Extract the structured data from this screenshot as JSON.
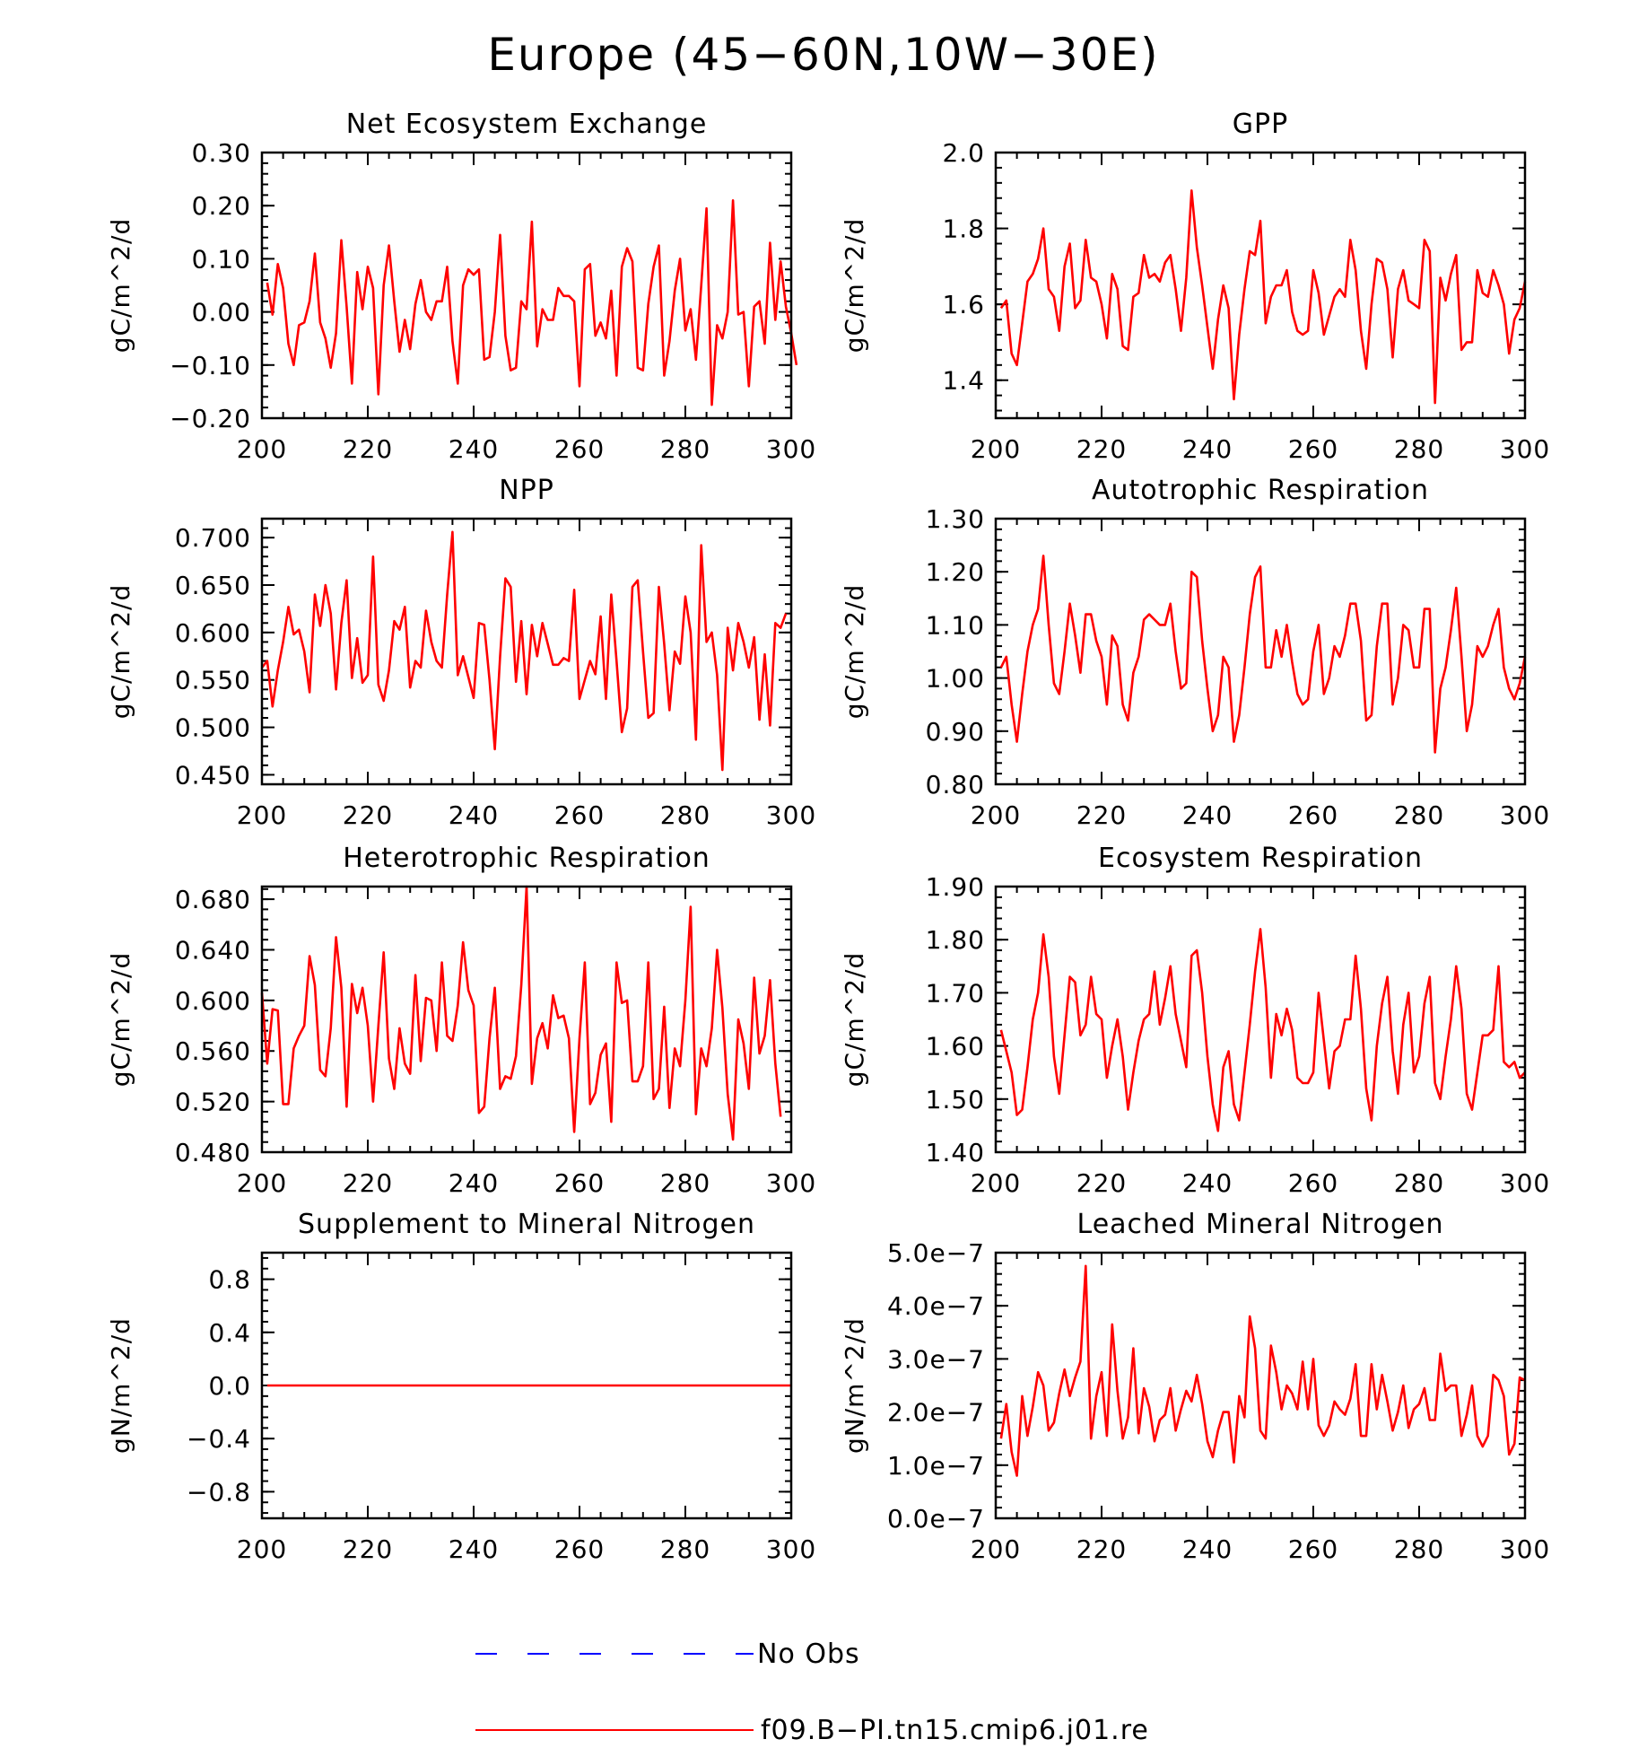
{
  "title": "Europe (45−60N,10W−30E)",
  "colors": {
    "series": "#ff0000",
    "obs": "#0000ff"
  },
  "legend": [
    {
      "label": "No Obs",
      "color": "#0000ff",
      "style": "dashed"
    },
    {
      "label": "f09.B−PI.tn15.cmip6.j01.re",
      "color": "#ff0000",
      "style": "solid"
    }
  ],
  "chart_data": [
    {
      "type": "line",
      "title": "Net Ecosystem Exchange",
      "ylabel": "gC/m^2/d",
      "xlim": [
        200,
        300
      ],
      "ylim": [
        -0.2,
        0.3
      ],
      "xticks": [
        200,
        220,
        240,
        260,
        280,
        300
      ],
      "xtick_labels": [
        "200",
        "220",
        "240",
        "260",
        "280",
        "300"
      ],
      "yticks": [
        -0.2,
        -0.1,
        0.0,
        0.1,
        0.2,
        0.3
      ],
      "ytick_labels": [
        "−0.20",
        "−0.10",
        "0.00",
        "0.10",
        "0.20",
        "0.30"
      ],
      "x_start": 201,
      "series": [
        {
          "name": "f09.B−PI.tn15.cmip6.j01.re",
          "values": [
            0.055,
            -0.005,
            0.09,
            0.045,
            -0.06,
            -0.1,
            -0.025,
            -0.02,
            0.02,
            0.11,
            -0.02,
            -0.05,
            -0.105,
            -0.04,
            0.135,
            0.01,
            -0.135,
            0.075,
            0.005,
            0.085,
            0.045,
            -0.155,
            0.05,
            0.125,
            0.02,
            -0.075,
            -0.015,
            -0.07,
            0.015,
            0.06,
            0.0,
            -0.015,
            0.02,
            0.02,
            0.085,
            -0.055,
            -0.135,
            0.05,
            0.08,
            0.07,
            0.08,
            -0.09,
            -0.085,
            0.0,
            0.145,
            -0.045,
            -0.11,
            -0.105,
            0.02,
            0.005,
            0.17,
            -0.065,
            0.005,
            -0.015,
            -0.015,
            0.045,
            0.03,
            0.03,
            0.02,
            -0.14,
            0.08,
            0.09,
            -0.045,
            -0.02,
            -0.05,
            0.04,
            -0.12,
            0.085,
            0.12,
            0.095,
            -0.105,
            -0.11,
            0.015,
            0.085,
            0.125,
            -0.12,
            -0.055,
            0.04,
            0.1,
            -0.035,
            0.005,
            -0.09,
            0.05,
            0.195,
            -0.175,
            -0.025,
            -0.05,
            0.0,
            0.21,
            -0.005,
            0.0,
            -0.14,
            0.01,
            0.02,
            -0.06,
            0.13,
            -0.015,
            0.095,
            0.01,
            -0.04,
            -0.1
          ]
        }
      ]
    },
    {
      "type": "line",
      "title": "GPP",
      "ylabel": "gC/m^2/d",
      "xlim": [
        200,
        300
      ],
      "ylim": [
        1.3,
        2.0
      ],
      "xticks": [
        200,
        220,
        240,
        260,
        280,
        300
      ],
      "xtick_labels": [
        "200",
        "220",
        "240",
        "260",
        "280",
        "300"
      ],
      "yticks": [
        1.4,
        1.6,
        1.8,
        2.0
      ],
      "ytick_labels": [
        "1.4",
        "1.6",
        "1.8",
        "2.0"
      ],
      "x_start": 201,
      "series": [
        {
          "name": "f09.B−PI.tn15.cmip6.j01.re",
          "values": [
            1.59,
            1.61,
            1.47,
            1.44,
            1.55,
            1.66,
            1.68,
            1.72,
            1.8,
            1.64,
            1.62,
            1.53,
            1.7,
            1.76,
            1.59,
            1.61,
            1.77,
            1.67,
            1.66,
            1.6,
            1.51,
            1.68,
            1.64,
            1.49,
            1.48,
            1.62,
            1.63,
            1.73,
            1.67,
            1.68,
            1.66,
            1.71,
            1.73,
            1.64,
            1.53,
            1.67,
            1.9,
            1.75,
            1.65,
            1.54,
            1.43,
            1.56,
            1.65,
            1.59,
            1.35,
            1.52,
            1.64,
            1.74,
            1.73,
            1.82,
            1.55,
            1.62,
            1.65,
            1.65,
            1.69,
            1.58,
            1.53,
            1.52,
            1.53,
            1.69,
            1.63,
            1.52,
            1.57,
            1.62,
            1.64,
            1.62,
            1.77,
            1.69,
            1.53,
            1.43,
            1.6,
            1.72,
            1.71,
            1.64,
            1.46,
            1.64,
            1.69,
            1.61,
            1.6,
            1.59,
            1.77,
            1.74,
            1.34,
            1.67,
            1.61,
            1.68,
            1.73,
            1.48,
            1.5,
            1.5,
            1.69,
            1.63,
            1.62,
            1.69,
            1.65,
            1.6,
            1.47,
            1.56,
            1.59,
            1.66
          ]
        }
      ]
    },
    {
      "type": "line",
      "title": "NPP",
      "ylabel": "gC/m^2/d",
      "xlim": [
        200,
        300
      ],
      "ylim": [
        0.44,
        0.72
      ],
      "xticks": [
        200,
        220,
        240,
        260,
        280,
        300
      ],
      "xtick_labels": [
        "200",
        "220",
        "240",
        "260",
        "280",
        "300"
      ],
      "yticks": [
        0.45,
        0.5,
        0.55,
        0.6,
        0.65,
        0.7
      ],
      "ytick_labels": [
        "0.450",
        "0.500",
        "0.550",
        "0.600",
        "0.650",
        "0.700"
      ],
      "x_start": 200,
      "series": [
        {
          "name": "f09.B−PI.tn15.cmip6.j01.re",
          "values": [
            0.563,
            0.57,
            0.522,
            0.56,
            0.59,
            0.627,
            0.598,
            0.603,
            0.58,
            0.537,
            0.64,
            0.607,
            0.65,
            0.62,
            0.54,
            0.61,
            0.655,
            0.552,
            0.594,
            0.547,
            0.555,
            0.68,
            0.545,
            0.528,
            0.56,
            0.612,
            0.603,
            0.627,
            0.542,
            0.57,
            0.563,
            0.623,
            0.59,
            0.57,
            0.563,
            0.64,
            0.706,
            0.555,
            0.575,
            0.553,
            0.531,
            0.61,
            0.608,
            0.55,
            0.477,
            0.575,
            0.657,
            0.648,
            0.548,
            0.612,
            0.535,
            0.608,
            0.575,
            0.61,
            0.588,
            0.566,
            0.566,
            0.573,
            0.57,
            0.645,
            0.53,
            0.55,
            0.57,
            0.556,
            0.617,
            0.53,
            0.64,
            0.57,
            0.495,
            0.52,
            0.648,
            0.655,
            0.58,
            0.51,
            0.515,
            0.648,
            0.588,
            0.518,
            0.58,
            0.567,
            0.638,
            0.6,
            0.487,
            0.692,
            0.59,
            0.6,
            0.555,
            0.455,
            0.605,
            0.56,
            0.61,
            0.59,
            0.563,
            0.595,
            0.508,
            0.577,
            0.502,
            0.61,
            0.605,
            0.62
          ]
        }
      ]
    },
    {
      "type": "line",
      "title": "Autotrophic Respiration",
      "ylabel": "gC/m^2/d",
      "xlim": [
        200,
        300
      ],
      "ylim": [
        0.8,
        1.3
      ],
      "xticks": [
        200,
        220,
        240,
        260,
        280,
        300
      ],
      "xtick_labels": [
        "200",
        "220",
        "240",
        "260",
        "280",
        "300"
      ],
      "yticks": [
        0.8,
        0.9,
        1.0,
        1.1,
        1.2,
        1.3
      ],
      "ytick_labels": [
        "0.80",
        "0.90",
        "1.00",
        "1.10",
        "1.20",
        "1.30"
      ],
      "x_start": 201,
      "series": [
        {
          "name": "f09.B−PI.tn15.cmip6.j01.re",
          "values": [
            1.02,
            1.04,
            0.95,
            0.88,
            0.97,
            1.05,
            1.1,
            1.13,
            1.23,
            1.1,
            0.99,
            0.97,
            1.05,
            1.14,
            1.08,
            1.01,
            1.12,
            1.12,
            1.07,
            1.04,
            0.95,
            1.08,
            1.06,
            0.95,
            0.92,
            1.01,
            1.04,
            1.11,
            1.12,
            1.11,
            1.1,
            1.1,
            1.14,
            1.05,
            0.98,
            0.99,
            1.2,
            1.19,
            1.07,
            0.98,
            0.9,
            0.93,
            1.04,
            1.02,
            0.88,
            0.93,
            1.02,
            1.12,
            1.19,
            1.21,
            1.02,
            1.02,
            1.09,
            1.04,
            1.1,
            1.03,
            0.97,
            0.95,
            0.96,
            1.05,
            1.1,
            0.97,
            1.0,
            1.06,
            1.04,
            1.08,
            1.14,
            1.14,
            1.07,
            0.92,
            0.93,
            1.06,
            1.14,
            1.14,
            0.95,
            1.0,
            1.1,
            1.09,
            1.02,
            1.02,
            1.13,
            1.13,
            0.86,
            0.98,
            1.02,
            1.09,
            1.17,
            1.04,
            0.9,
            0.95,
            1.06,
            1.04,
            1.06,
            1.1,
            1.13,
            1.02,
            0.98,
            0.96,
            0.99,
            1.04
          ]
        }
      ]
    },
    {
      "type": "line",
      "title": "Heterotrophic Respiration",
      "ylabel": "gC/m^2/d",
      "xlim": [
        200,
        300
      ],
      "ylim": [
        0.48,
        0.69
      ],
      "xticks": [
        200,
        220,
        240,
        260,
        280,
        300
      ],
      "xtick_labels": [
        "200",
        "220",
        "240",
        "260",
        "280",
        "300"
      ],
      "yticks": [
        0.48,
        0.52,
        0.56,
        0.6,
        0.64,
        0.68
      ],
      "ytick_labels": [
        "0.480",
        "0.520",
        "0.560",
        "0.600",
        "0.640",
        "0.680"
      ],
      "x_start": 200,
      "series": [
        {
          "name": "f09.B−PI.tn15.cmip6.j01.re",
          "values": [
            0.606,
            0.55,
            0.593,
            0.592,
            0.518,
            0.518,
            0.562,
            0.572,
            0.58,
            0.635,
            0.612,
            0.545,
            0.54,
            0.578,
            0.65,
            0.61,
            0.516,
            0.613,
            0.59,
            0.61,
            0.58,
            0.52,
            0.58,
            0.638,
            0.554,
            0.53,
            0.578,
            0.55,
            0.542,
            0.62,
            0.552,
            0.602,
            0.6,
            0.56,
            0.63,
            0.572,
            0.568,
            0.596,
            0.646,
            0.608,
            0.596,
            0.511,
            0.516,
            0.57,
            0.61,
            0.53,
            0.54,
            0.538,
            0.556,
            0.612,
            0.69,
            0.534,
            0.57,
            0.582,
            0.562,
            0.604,
            0.586,
            0.588,
            0.57,
            0.496,
            0.57,
            0.63,
            0.518,
            0.527,
            0.557,
            0.566,
            0.504,
            0.63,
            0.598,
            0.6,
            0.536,
            0.536,
            0.548,
            0.63,
            0.522,
            0.53,
            0.595,
            0.515,
            0.562,
            0.548,
            0.6,
            0.674,
            0.51,
            0.562,
            0.548,
            0.578,
            0.64,
            0.594,
            0.526,
            0.49,
            0.585,
            0.566,
            0.53,
            0.618,
            0.558,
            0.572,
            0.616,
            0.55,
            0.508
          ]
        }
      ]
    },
    {
      "type": "line",
      "title": "Ecosystem Respiration",
      "ylabel": "gC/m^2/d",
      "xlim": [
        200,
        300
      ],
      "ylim": [
        1.4,
        1.9
      ],
      "xticks": [
        200,
        220,
        240,
        260,
        280,
        300
      ],
      "xtick_labels": [
        "200",
        "220",
        "240",
        "260",
        "280",
        "300"
      ],
      "yticks": [
        1.4,
        1.5,
        1.6,
        1.7,
        1.8,
        1.9
      ],
      "ytick_labels": [
        "1.40",
        "1.50",
        "1.60",
        "1.70",
        "1.80",
        "1.90"
      ],
      "x_start": 201,
      "series": [
        {
          "name": "f09.B−PI.tn15.cmip6.j01.re",
          "values": [
            1.63,
            1.59,
            1.55,
            1.47,
            1.48,
            1.56,
            1.65,
            1.7,
            1.81,
            1.73,
            1.58,
            1.51,
            1.62,
            1.73,
            1.72,
            1.62,
            1.64,
            1.73,
            1.66,
            1.65,
            1.54,
            1.6,
            1.65,
            1.58,
            1.48,
            1.55,
            1.61,
            1.65,
            1.66,
            1.74,
            1.64,
            1.69,
            1.75,
            1.66,
            1.61,
            1.56,
            1.77,
            1.78,
            1.7,
            1.58,
            1.49,
            1.44,
            1.56,
            1.59,
            1.49,
            1.46,
            1.55,
            1.64,
            1.74,
            1.82,
            1.71,
            1.54,
            1.66,
            1.62,
            1.67,
            1.63,
            1.54,
            1.53,
            1.53,
            1.55,
            1.7,
            1.61,
            1.52,
            1.59,
            1.6,
            1.65,
            1.65,
            1.77,
            1.67,
            1.52,
            1.46,
            1.6,
            1.68,
            1.73,
            1.59,
            1.51,
            1.64,
            1.7,
            1.55,
            1.58,
            1.68,
            1.73,
            1.53,
            1.5,
            1.58,
            1.65,
            1.75,
            1.67,
            1.51,
            1.48,
            1.55,
            1.62,
            1.62,
            1.63,
            1.75,
            1.57,
            1.56,
            1.57,
            1.54,
            1.55
          ]
        }
      ]
    },
    {
      "type": "line",
      "title": "Supplement to Mineral Nitrogen",
      "ylabel": "gN/m^2/d",
      "xlim": [
        200,
        300
      ],
      "ylim": [
        -1.0,
        1.0
      ],
      "xticks": [
        200,
        220,
        240,
        260,
        280,
        300
      ],
      "xtick_labels": [
        "200",
        "220",
        "240",
        "260",
        "280",
        "300"
      ],
      "yticks": [
        -0.8,
        -0.4,
        0.0,
        0.4,
        0.8
      ],
      "ytick_labels": [
        "−0.8",
        "−0.4",
        "0.0",
        "0.4",
        "0.8"
      ],
      "x_start": 201,
      "series": [
        {
          "name": "f09.B−PI.tn15.cmip6.j01.re",
          "x": [
            201,
            300
          ],
          "values": [
            0.0,
            0.0
          ]
        }
      ]
    },
    {
      "type": "line",
      "title": "Leached Mineral Nitrogen",
      "ylabel": "gN/m^2/d",
      "xlim": [
        200,
        300
      ],
      "ylim": [
        0.0,
        5e-07
      ],
      "xticks": [
        200,
        220,
        240,
        260,
        280,
        300
      ],
      "xtick_labels": [
        "200",
        "220",
        "240",
        "260",
        "280",
        "300"
      ],
      "yticks": [
        0.0,
        1e-07,
        2e-07,
        3e-07,
        4e-07,
        5e-07
      ],
      "ytick_labels": [
        "0.0e−7",
        "1.0e−7",
        "2.0e−7",
        "3.0e−7",
        "4.0e−7",
        "5.0e−7"
      ],
      "x_start": 201,
      "series": [
        {
          "name": "f09.B−PI.tn15.cmip6.j01.re",
          "values": [
            1.5e-07,
            2.15e-07,
            1.25e-07,
            8e-08,
            2.3e-07,
            1.55e-07,
            2.1e-07,
            2.75e-07,
            2.5e-07,
            1.65e-07,
            1.8e-07,
            2.35e-07,
            2.8e-07,
            2.3e-07,
            2.65e-07,
            2.95e-07,
            4.75e-07,
            1.5e-07,
            2.3e-07,
            2.75e-07,
            1.55e-07,
            3.65e-07,
            2.4e-07,
            1.5e-07,
            1.9e-07,
            3.2e-07,
            1.6e-07,
            2.45e-07,
            2.1e-07,
            1.45e-07,
            1.85e-07,
            1.95e-07,
            2.45e-07,
            1.65e-07,
            2.05e-07,
            2.4e-07,
            2.2e-07,
            2.7e-07,
            2.15e-07,
            1.45e-07,
            1.15e-07,
            1.65e-07,
            2e-07,
            2e-07,
            1.05e-07,
            2.3e-07,
            1.9e-07,
            3.8e-07,
            3.2e-07,
            1.65e-07,
            1.5e-07,
            3.25e-07,
            2.75e-07,
            2.05e-07,
            2.5e-07,
            2.35e-07,
            2.05e-07,
            2.95e-07,
            2.05e-07,
            3e-07,
            1.75e-07,
            1.55e-07,
            1.75e-07,
            2.2e-07,
            2.05e-07,
            1.95e-07,
            2.25e-07,
            2.9e-07,
            1.55e-07,
            1.55e-07,
            2.9e-07,
            2.05e-07,
            2.7e-07,
            2.2e-07,
            1.65e-07,
            2e-07,
            2.5e-07,
            1.7e-07,
            2.05e-07,
            2.15e-07,
            2.45e-07,
            1.85e-07,
            1.85e-07,
            3.1e-07,
            2.4e-07,
            2.5e-07,
            2.5e-07,
            1.55e-07,
            1.95e-07,
            2.5e-07,
            1.55e-07,
            1.35e-07,
            1.55e-07,
            2.7e-07,
            2.6e-07,
            2.3e-07,
            1.2e-07,
            1.4e-07,
            2.65e-07,
            2.6e-07
          ]
        }
      ]
    }
  ]
}
